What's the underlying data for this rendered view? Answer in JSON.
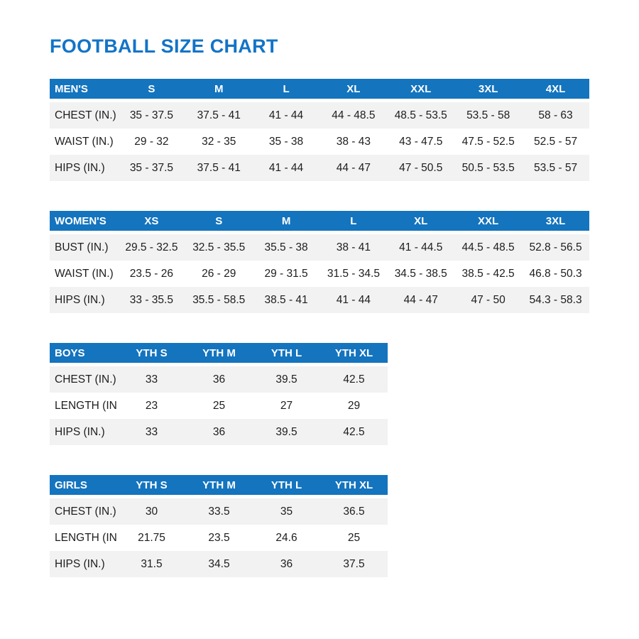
{
  "page_title": "FOOTBALL SIZE CHART",
  "colors": {
    "title_blue": "#1274c7",
    "header_blue": "#1474be",
    "row_alt_gray": "#f2f2f2",
    "text_dark": "#1d1d1d"
  },
  "tables": [
    {
      "id": "mens",
      "header": [
        "MEN'S",
        "S",
        "M",
        "L",
        "XL",
        "XXL",
        "3XL",
        "4XL"
      ],
      "rows": [
        {
          "label": "CHEST (IN.)",
          "values": [
            "35 - 37.5",
            "37.5 - 41",
            "41 - 44",
            "44 - 48.5",
            "48.5 - 53.5",
            "53.5 - 58",
            "58 - 63"
          ]
        },
        {
          "label": "WAIST (IN.)",
          "values": [
            "29 - 32",
            "32 - 35",
            "35 - 38",
            "38 - 43",
            "43 - 47.5",
            "47.5 - 52.5",
            "52.5 - 57"
          ]
        },
        {
          "label": "HIPS (IN.)",
          "values": [
            "35 - 37.5",
            "37.5 - 41",
            "41 - 44",
            "44 - 47",
            "47 - 50.5",
            "50.5 - 53.5",
            "53.5 - 57"
          ]
        }
      ]
    },
    {
      "id": "womens",
      "header": [
        "WOMEN'S",
        "XS",
        "S",
        "M",
        "L",
        "XL",
        "XXL",
        "3XL"
      ],
      "rows": [
        {
          "label": "BUST (IN.)",
          "values": [
            "29.5 - 32.5",
            "32.5 - 35.5",
            "35.5 - 38",
            "38 - 41",
            "41 - 44.5",
            "44.5 - 48.5",
            "52.8 - 56.5"
          ]
        },
        {
          "label": "WAIST (IN.)",
          "values": [
            "23.5 - 26",
            "26 - 29",
            "29 - 31.5",
            "31.5 - 34.5",
            "34.5 - 38.5",
            "38.5 - 42.5",
            "46.8 - 50.3"
          ]
        },
        {
          "label": "HIPS (IN.)",
          "values": [
            "33 - 35.5",
            "35.5 - 58.5",
            "38.5 - 41",
            "41 - 44",
            "44 - 47",
            "47 - 50",
            "54.3 - 58.3"
          ]
        }
      ]
    },
    {
      "id": "boys",
      "header": [
        "BOYS",
        "YTH S",
        "YTH M",
        "YTH L",
        "YTH XL"
      ],
      "rows": [
        {
          "label": "CHEST (IN.)",
          "values": [
            "33",
            "36",
            "39.5",
            "42.5"
          ]
        },
        {
          "label": "LENGTH (IN.)",
          "values": [
            "23",
            "25",
            "27",
            "29"
          ]
        },
        {
          "label": "HIPS (IN.)",
          "values": [
            "33",
            "36",
            "39.5",
            "42.5"
          ]
        }
      ]
    },
    {
      "id": "girls",
      "header": [
        "GIRLS",
        "YTH S",
        "YTH M",
        "YTH L",
        "YTH XL"
      ],
      "rows": [
        {
          "label": "CHEST (IN.)",
          "values": [
            "30",
            "33.5",
            "35",
            "36.5"
          ]
        },
        {
          "label": "LENGTH (IN.)",
          "values": [
            "21.75",
            "23.5",
            "24.6",
            "25"
          ]
        },
        {
          "label": "HIPS (IN.)",
          "values": [
            "31.5",
            "34.5",
            "36",
            "37.5"
          ]
        }
      ]
    }
  ]
}
